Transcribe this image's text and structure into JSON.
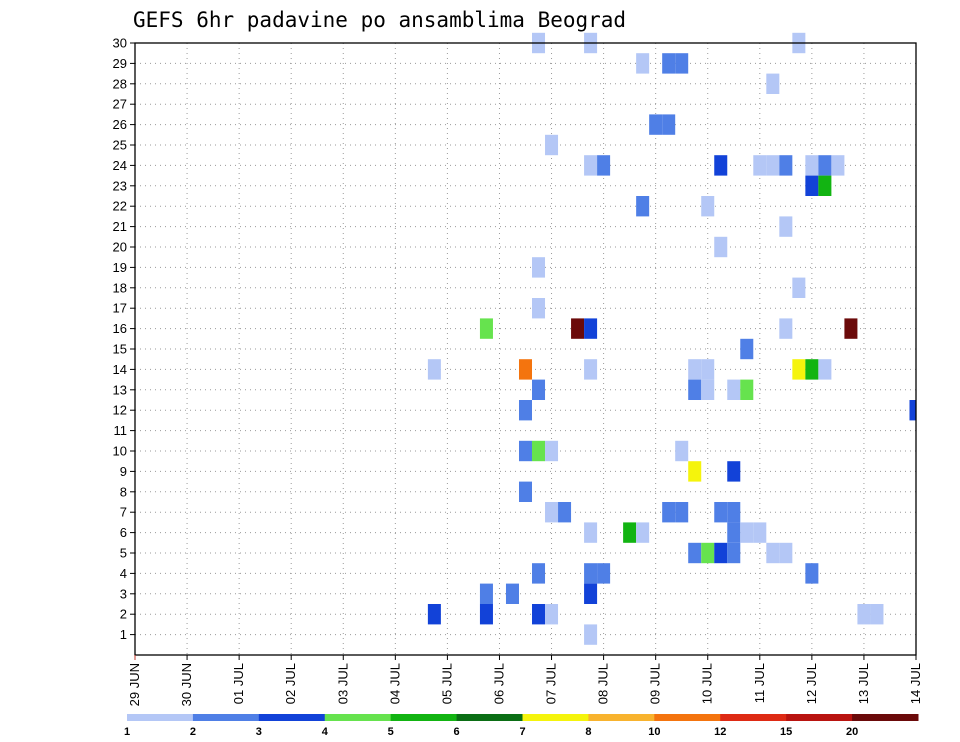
{
  "chart_data": {
    "type": "heatmap",
    "title": "GEFS 6hr padavine po ansamblima Beograd",
    "xlabel": "",
    "ylabel": "",
    "x_ticks": [
      "29 JUN",
      "30 JUN",
      "01 JUL",
      "02 JUL",
      "03 JUL",
      "04 JUL",
      "05 JUL",
      "06 JUL",
      "07 JUL",
      "08 JUL",
      "09 JUL",
      "10 JUL",
      "11 JUL",
      "12 JUL",
      "13 JUL",
      "14 JUL"
    ],
    "xlim_days": [
      0,
      15
    ],
    "time_step": "6hr",
    "y_ticks": [
      1,
      2,
      3,
      4,
      5,
      6,
      7,
      8,
      9,
      10,
      11,
      12,
      13,
      14,
      15,
      16,
      17,
      18,
      19,
      20,
      21,
      22,
      23,
      24,
      25,
      26,
      27,
      28,
      29,
      30
    ],
    "ylim": [
      0,
      30
    ],
    "grid": true,
    "colorbar": {
      "colors": [
        "#b4c7f6",
        "#4f7fe6",
        "#1242d8",
        "#66e34e",
        "#12b412",
        "#0b6e15",
        "#f5f40c",
        "#f8b32e",
        "#f4740e",
        "#de2a14",
        "#b91410",
        "#6b0a0a"
      ],
      "labels": [
        "1",
        "2",
        "3",
        "4",
        "5",
        "6",
        "7",
        "8",
        "10",
        "12",
        "15",
        "20"
      ]
    },
    "cells": [
      {
        "x": 7.75,
        "y": 30,
        "c": 0
      },
      {
        "x": 8.75,
        "y": 30,
        "c": 0
      },
      {
        "x": 12.75,
        "y": 30,
        "c": 0
      },
      {
        "x": 9.75,
        "y": 29,
        "c": 0
      },
      {
        "x": 10.25,
        "y": 29,
        "c": 1
      },
      {
        "x": 10.5,
        "y": 29,
        "c": 1
      },
      {
        "x": 12.25,
        "y": 28,
        "c": 0
      },
      {
        "x": 10,
        "y": 26,
        "c": 1
      },
      {
        "x": 10.25,
        "y": 26,
        "c": 1
      },
      {
        "x": 8,
        "y": 25,
        "c": 0
      },
      {
        "x": 8.75,
        "y": 24,
        "c": 0
      },
      {
        "x": 9,
        "y": 24,
        "c": 1
      },
      {
        "x": 11.25,
        "y": 24,
        "c": 2
      },
      {
        "x": 12,
        "y": 24,
        "c": 0
      },
      {
        "x": 12.25,
        "y": 24,
        "c": 0
      },
      {
        "x": 12.5,
        "y": 24,
        "c": 1
      },
      {
        "x": 13,
        "y": 24,
        "c": 0
      },
      {
        "x": 13.25,
        "y": 24,
        "c": 1
      },
      {
        "x": 13.5,
        "y": 24,
        "c": 0
      },
      {
        "x": 13,
        "y": 23,
        "c": 2
      },
      {
        "x": 13.25,
        "y": 23,
        "c": 4
      },
      {
        "x": 9.75,
        "y": 22,
        "c": 1
      },
      {
        "x": 11,
        "y": 22,
        "c": 0
      },
      {
        "x": 12.5,
        "y": 21,
        "c": 0
      },
      {
        "x": 11.25,
        "y": 20,
        "c": 0
      },
      {
        "x": 7.75,
        "y": 19,
        "c": 0
      },
      {
        "x": 12.75,
        "y": 18,
        "c": 0
      },
      {
        "x": 7.75,
        "y": 17,
        "c": 0
      },
      {
        "x": 6.75,
        "y": 16,
        "c": 3
      },
      {
        "x": 8.5,
        "y": 16,
        "c": 11
      },
      {
        "x": 8.75,
        "y": 16,
        "c": 2
      },
      {
        "x": 12.5,
        "y": 16,
        "c": 0
      },
      {
        "x": 13.75,
        "y": 16,
        "c": 11
      },
      {
        "x": 11.75,
        "y": 15,
        "c": 1
      },
      {
        "x": 5.75,
        "y": 14,
        "c": 0
      },
      {
        "x": 7.5,
        "y": 14,
        "c": 8
      },
      {
        "x": 8.75,
        "y": 14,
        "c": 0
      },
      {
        "x": 10.75,
        "y": 14,
        "c": 0
      },
      {
        "x": 11,
        "y": 14,
        "c": 0
      },
      {
        "x": 12.75,
        "y": 14,
        "c": 6
      },
      {
        "x": 13,
        "y": 14,
        "c": 4
      },
      {
        "x": 13.25,
        "y": 14,
        "c": 0
      },
      {
        "x": 7.75,
        "y": 13,
        "c": 1
      },
      {
        "x": 10.75,
        "y": 13,
        "c": 1
      },
      {
        "x": 11,
        "y": 13,
        "c": 0
      },
      {
        "x": 11.5,
        "y": 13,
        "c": 0
      },
      {
        "x": 11.75,
        "y": 13,
        "c": 3
      },
      {
        "x": 7.5,
        "y": 12,
        "c": 1
      },
      {
        "x": 15,
        "y": 12,
        "c": 2
      },
      {
        "x": 7.5,
        "y": 10,
        "c": 1
      },
      {
        "x": 7.75,
        "y": 10,
        "c": 3
      },
      {
        "x": 8,
        "y": 10,
        "c": 0
      },
      {
        "x": 10.5,
        "y": 10,
        "c": 0
      },
      {
        "x": 10.75,
        "y": 9,
        "c": 6
      },
      {
        "x": 11.5,
        "y": 9,
        "c": 2
      },
      {
        "x": 7.5,
        "y": 8,
        "c": 1
      },
      {
        "x": 8,
        "y": 7,
        "c": 0
      },
      {
        "x": 8.25,
        "y": 7,
        "c": 1
      },
      {
        "x": 10.25,
        "y": 7,
        "c": 1
      },
      {
        "x": 10.5,
        "y": 7,
        "c": 1
      },
      {
        "x": 11.25,
        "y": 7,
        "c": 1
      },
      {
        "x": 11.5,
        "y": 7,
        "c": 1
      },
      {
        "x": 8.75,
        "y": 6,
        "c": 0
      },
      {
        "x": 9.5,
        "y": 6,
        "c": 4
      },
      {
        "x": 9.75,
        "y": 6,
        "c": 0
      },
      {
        "x": 11.5,
        "y": 6,
        "c": 1
      },
      {
        "x": 11.75,
        "y": 6,
        "c": 0
      },
      {
        "x": 12,
        "y": 6,
        "c": 0
      },
      {
        "x": 10.75,
        "y": 5,
        "c": 1
      },
      {
        "x": 11,
        "y": 5,
        "c": 3
      },
      {
        "x": 11.25,
        "y": 5,
        "c": 2
      },
      {
        "x": 11.5,
        "y": 5,
        "c": 1
      },
      {
        "x": 12.25,
        "y": 5,
        "c": 0
      },
      {
        "x": 12.5,
        "y": 5,
        "c": 0
      },
      {
        "x": 7.75,
        "y": 4,
        "c": 1
      },
      {
        "x": 8.75,
        "y": 4,
        "c": 1
      },
      {
        "x": 9,
        "y": 4,
        "c": 1
      },
      {
        "x": 13,
        "y": 4,
        "c": 1
      },
      {
        "x": 6.75,
        "y": 3,
        "c": 1
      },
      {
        "x": 7.25,
        "y": 3,
        "c": 1
      },
      {
        "x": 8.75,
        "y": 3,
        "c": 2
      },
      {
        "x": 5.75,
        "y": 2,
        "c": 2
      },
      {
        "x": 6.75,
        "y": 2,
        "c": 2
      },
      {
        "x": 7.75,
        "y": 2,
        "c": 2
      },
      {
        "x": 8,
        "y": 2,
        "c": 0
      },
      {
        "x": 14,
        "y": 2,
        "c": 0
      },
      {
        "x": 14.25,
        "y": 2,
        "c": 0
      },
      {
        "x": 8.75,
        "y": 1,
        "c": 0
      }
    ]
  }
}
